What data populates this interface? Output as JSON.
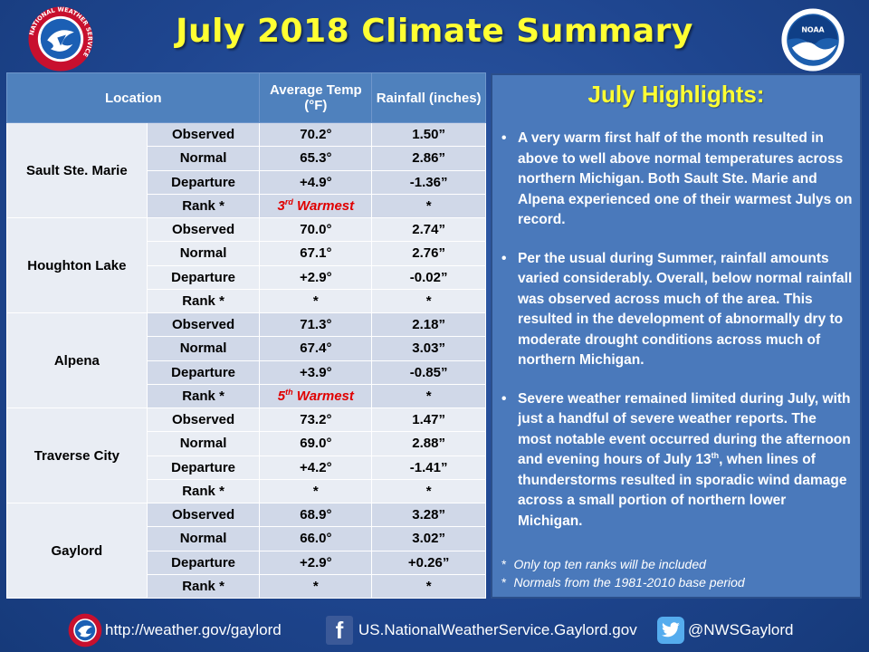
{
  "title": "July 2018 Climate Summary",
  "header_logos": {
    "left": "nws-logo",
    "left_ring_text": "NATIONAL WEATHER SERVICE",
    "right": "noaa-logo",
    "right_text": "NOAA"
  },
  "table": {
    "headers": {
      "location": "Location",
      "temp": "Average Temp (°F)",
      "rain": "Rainfall (inches)"
    },
    "locations": [
      {
        "name": "Sault Ste. Marie",
        "rows": [
          {
            "kind": "Observed",
            "temp": "70.2°",
            "rain": "1.50”"
          },
          {
            "kind": "Normal",
            "temp": "65.3°",
            "rain": "2.86”"
          },
          {
            "kind": "Departure",
            "temp": "+4.9°",
            "rain": "-1.36”"
          },
          {
            "kind": "Rank *",
            "temp_num": "3",
            "temp_sup": "rd",
            "temp_rest": " Warmest",
            "rain": "*"
          }
        ]
      },
      {
        "name": "Houghton Lake",
        "rows": [
          {
            "kind": "Observed",
            "temp": "70.0°",
            "rain": "2.74”"
          },
          {
            "kind": "Normal",
            "temp": "67.1°",
            "rain": "2.76”"
          },
          {
            "kind": "Departure",
            "temp": "+2.9°",
            "rain": "-0.02”"
          },
          {
            "kind": "Rank *",
            "temp": "*",
            "rain": "*"
          }
        ]
      },
      {
        "name": "Alpena",
        "rows": [
          {
            "kind": "Observed",
            "temp": "71.3°",
            "rain": "2.18”"
          },
          {
            "kind": "Normal",
            "temp": "67.4°",
            "rain": "3.03”"
          },
          {
            "kind": "Departure",
            "temp": "+3.9°",
            "rain": "-0.85”"
          },
          {
            "kind": "Rank *",
            "temp_num": "5",
            "temp_sup": "th",
            "temp_rest": " Warmest",
            "rain": "*"
          }
        ]
      },
      {
        "name": "Traverse City",
        "rows": [
          {
            "kind": "Observed",
            "temp": "73.2°",
            "rain": "1.47”"
          },
          {
            "kind": "Normal",
            "temp": "69.0°",
            "rain": "2.88”"
          },
          {
            "kind": "Departure",
            "temp": "+4.2°",
            "rain": "-1.41”"
          },
          {
            "kind": "Rank *",
            "temp": "*",
            "rain": "*"
          }
        ]
      },
      {
        "name": "Gaylord",
        "rows": [
          {
            "kind": "Observed",
            "temp": "68.9°",
            "rain": "3.28”"
          },
          {
            "kind": "Normal",
            "temp": "66.0°",
            "rain": "3.02”"
          },
          {
            "kind": "Departure",
            "temp": "+2.9°",
            "rain": "+0.26”"
          },
          {
            "kind": "Rank *",
            "temp": "*",
            "rain": "*"
          }
        ]
      }
    ]
  },
  "highlights": {
    "title": "July Highlights:",
    "bullets": [
      {
        "text": "A very warm first half of the month resulted in above to well above normal temperatures across northern Michigan.  Both Sault Ste. Marie and Alpena experienced one of their warmest Julys on record."
      },
      {
        "text": "Per the usual during Summer, rainfall amounts varied considerably.  Overall, below normal rainfall was observed across much of the area. This resulted in the development of abnormally dry to moderate drought conditions across much of northern Michigan."
      },
      {
        "pre": "Severe weather remained limited during July, with just a handful of  severe weather reports. The most notable event occurred during the afternoon and evening hours of July 13",
        "sup": "th",
        "post": ", when lines of thunderstorms resulted in sporadic wind damage across a small portion of northern lower Michigan."
      }
    ],
    "notes": [
      {
        "star": "*",
        "text": "Only top ten ranks will be included"
      },
      {
        "star": "*",
        "text": "Normals from the 1981-2010 base period"
      }
    ]
  },
  "footer": {
    "website": "http://weather.gov/gaylord",
    "facebook": "US.NationalWeatherService.Gaylord.gov",
    "twitter": "@NWSGaylord",
    "facebook_glyph": "f"
  },
  "colors": {
    "title_yellow": "#ffff33",
    "header_blue": "#4f81bd",
    "row_dark": "#d0d8e8",
    "row_light": "#e9edf4",
    "rank_red": "#e00000",
    "panel_blue": "#4a79bb"
  }
}
